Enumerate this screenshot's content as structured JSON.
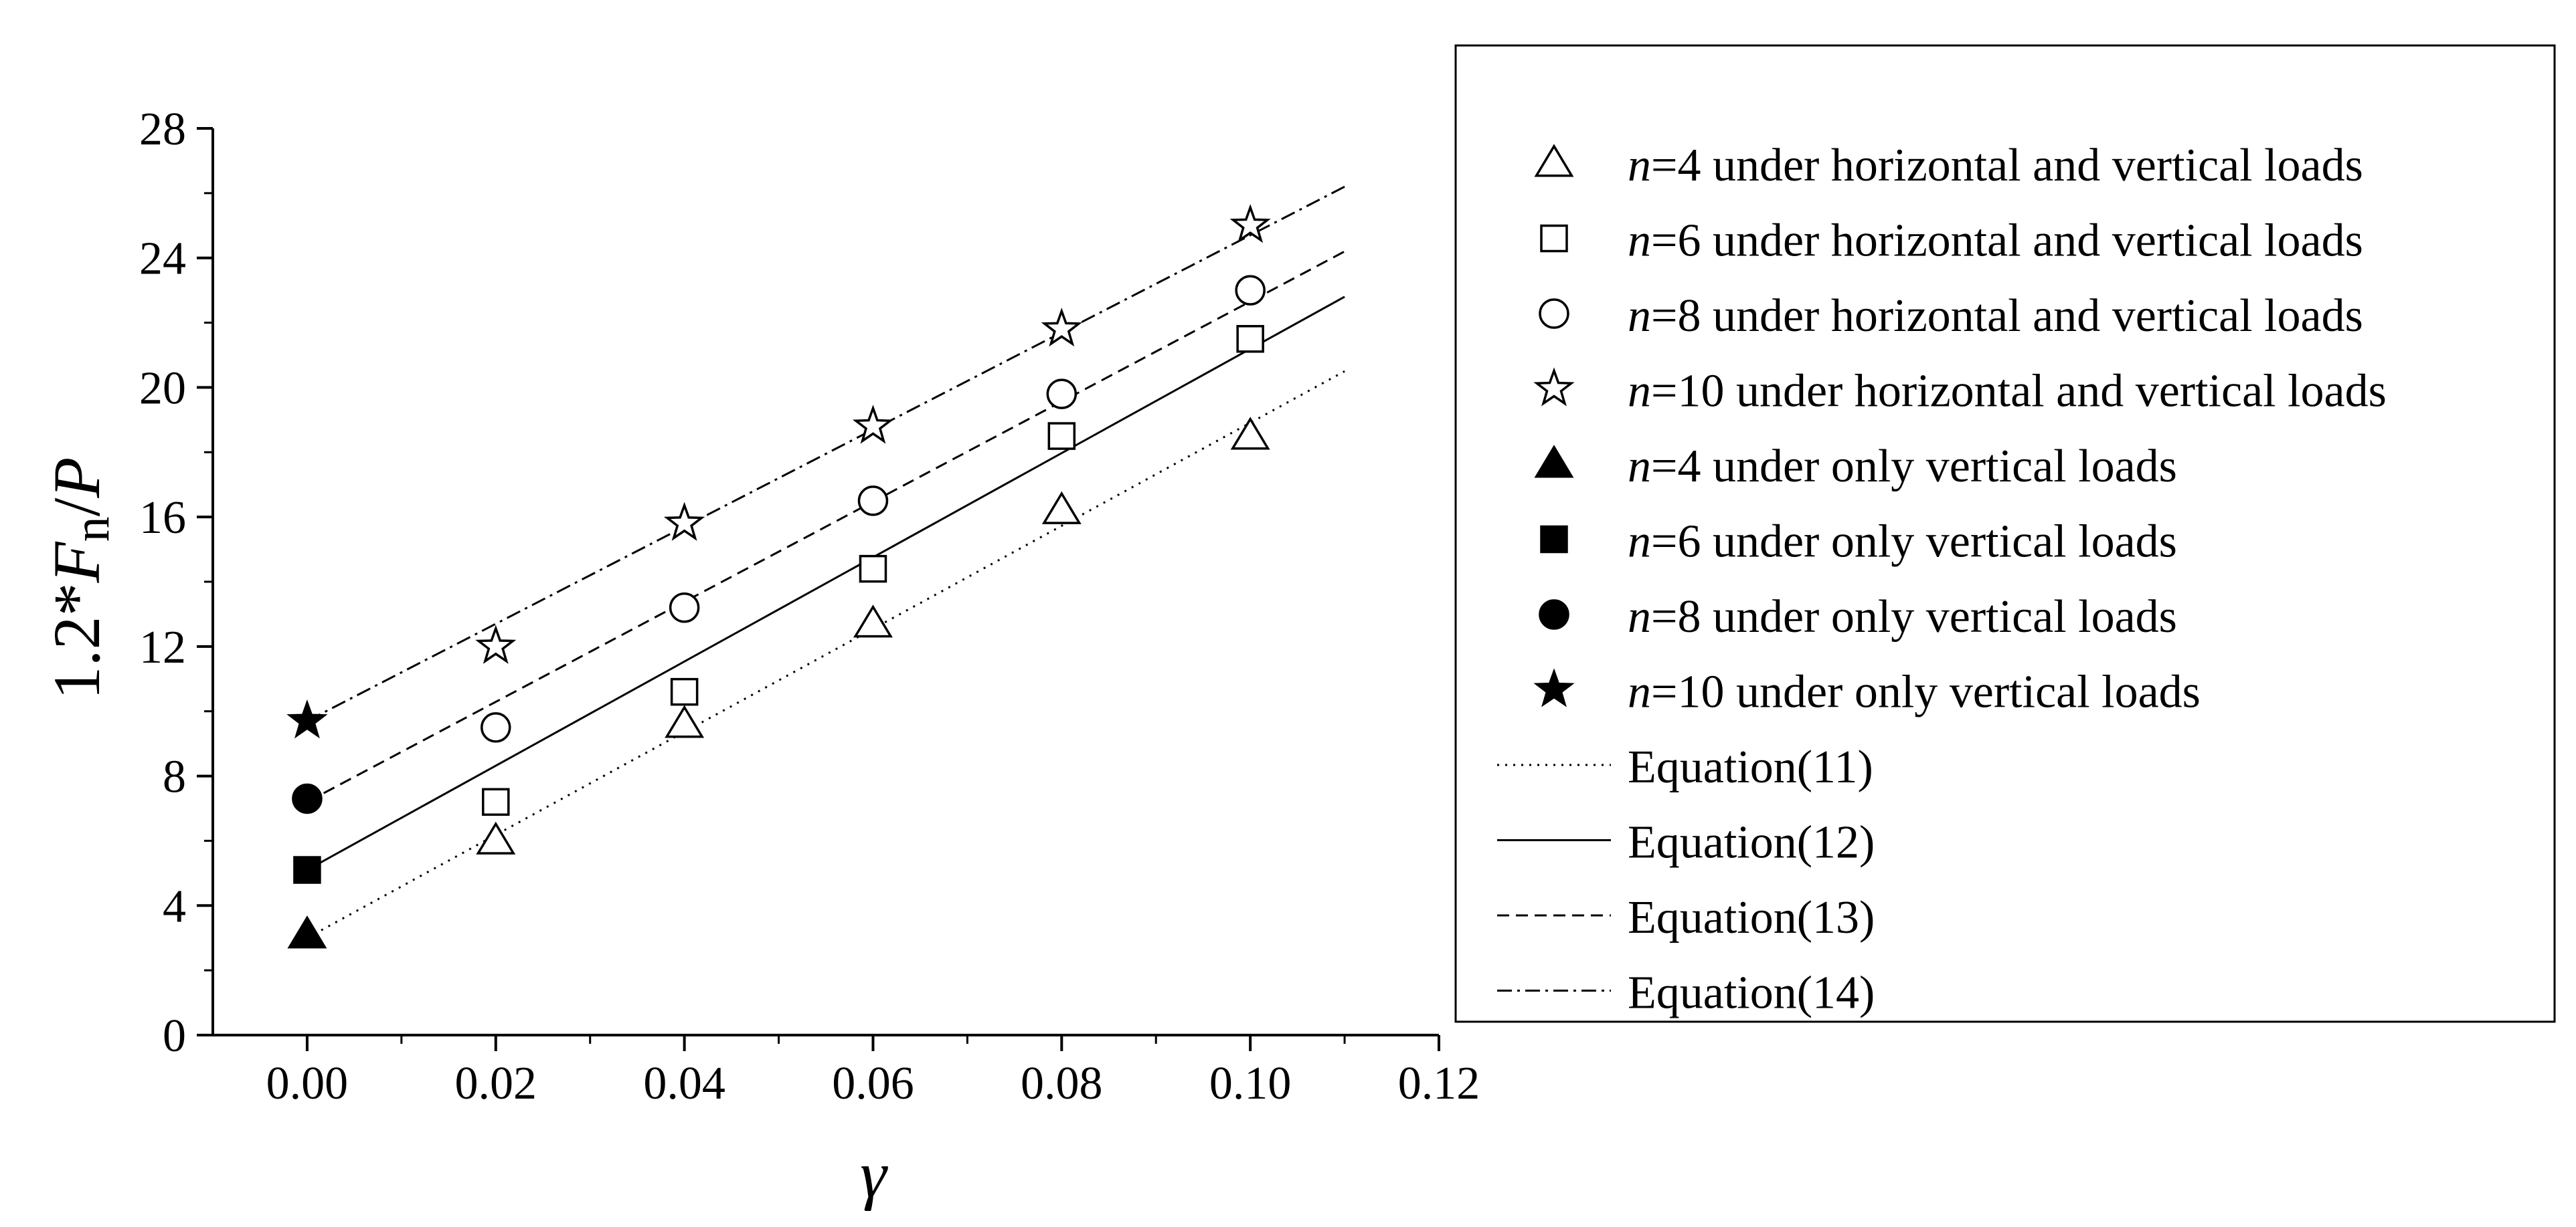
{
  "chart_data": {
    "type": "scatter",
    "xlabel": "γ",
    "ylabel": {
      "prefix": "1.2*",
      "var": "F",
      "sub": "n",
      "slash": "/",
      "denom": "P"
    },
    "xlim": [
      -0.01,
      0.12
    ],
    "ylim": [
      0,
      28
    ],
    "xticks": [
      "0.00",
      "0.02",
      "0.04",
      "0.06",
      "0.08",
      "0.10",
      "0.12"
    ],
    "xtick_values": [
      0,
      0.02,
      0.04,
      0.06,
      0.08,
      0.1,
      0.12
    ],
    "yticks": [
      "0",
      "4",
      "8",
      "12",
      "16",
      "20",
      "24",
      "28"
    ],
    "ytick_values": [
      0,
      4,
      8,
      12,
      16,
      20,
      24,
      28
    ],
    "grid": false,
    "legend_position": "right",
    "series": [
      {
        "name_var": "n",
        "name": "=4 under horizontal and vertical loads",
        "marker": "triangle-open",
        "x": [
          0.02,
          0.04,
          0.06,
          0.08,
          0.1
        ],
        "y": [
          6.0,
          9.6,
          12.7,
          16.2,
          18.5
        ]
      },
      {
        "name_var": "n",
        "name": "=6 under horizontal and vertical loads",
        "marker": "square-open",
        "x": [
          0.02,
          0.04,
          0.06,
          0.08,
          0.1
        ],
        "y": [
          7.2,
          10.6,
          14.4,
          18.5,
          21.5
        ]
      },
      {
        "name_var": "n",
        "name": "=8 under horizontal and vertical loads",
        "marker": "circle-open",
        "x": [
          0.02,
          0.04,
          0.06,
          0.08,
          0.1
        ],
        "y": [
          9.5,
          13.2,
          16.5,
          19.8,
          23.0
        ]
      },
      {
        "name_var": "n",
        "name": "=10 under horizontal and vertical loads",
        "marker": "star-open",
        "x": [
          0.02,
          0.04,
          0.06,
          0.08,
          0.1
        ],
        "y": [
          12.0,
          15.8,
          18.8,
          21.8,
          25.0
        ]
      },
      {
        "name_var": "n",
        "name": "=4 under only vertical loads",
        "marker": "triangle-filled",
        "x": [
          0.0
        ],
        "y": [
          3.1
        ]
      },
      {
        "name_var": "n",
        "name": "=6 under only vertical loads",
        "marker": "square-filled",
        "x": [
          0.0
        ],
        "y": [
          5.1
        ]
      },
      {
        "name_var": "n",
        "name": "=8 under only vertical loads",
        "marker": "circle-filled",
        "x": [
          0.0
        ],
        "y": [
          7.3
        ]
      },
      {
        "name_var": "n",
        "name": "=10 under only vertical loads",
        "marker": "star-filled",
        "x": [
          0.0
        ],
        "y": [
          9.7
        ]
      }
    ],
    "lines": [
      {
        "name": "Equation(11)",
        "style": "dotted",
        "x": [
          0.0,
          0.11
        ],
        "y": [
          3.0,
          20.5
        ]
      },
      {
        "name": "Equation(12)",
        "style": "solid",
        "x": [
          0.0,
          0.11
        ],
        "y": [
          5.1,
          22.8
        ]
      },
      {
        "name": "Equation(13)",
        "style": "dashed",
        "x": [
          0.0,
          0.11
        ],
        "y": [
          7.2,
          24.2
        ]
      },
      {
        "name": "Equation(14)",
        "style": "dashdot",
        "x": [
          0.0,
          0.11
        ],
        "y": [
          9.7,
          26.2
        ]
      }
    ]
  }
}
